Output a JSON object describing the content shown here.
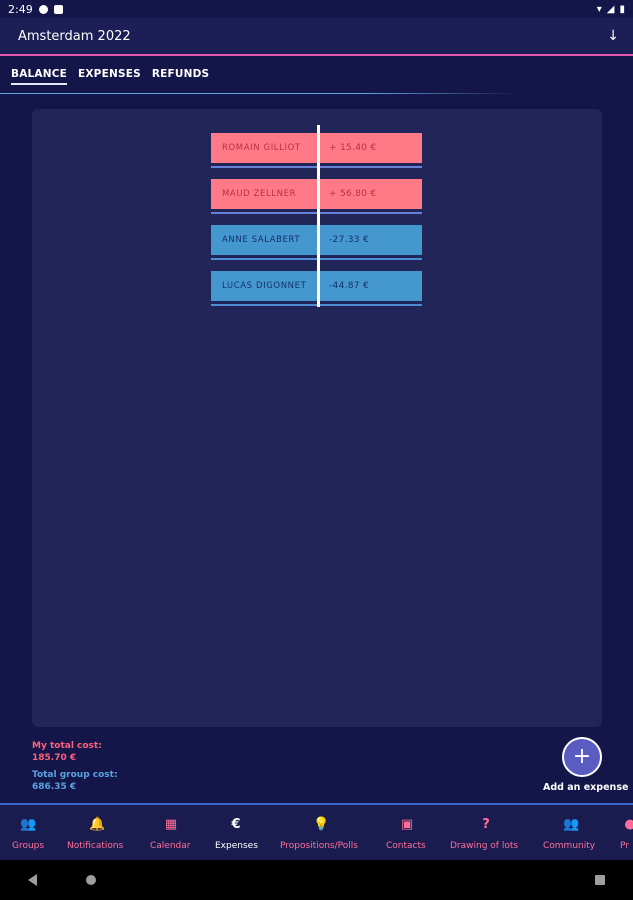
{
  "status_bar": {
    "time": "2:49",
    "right_icons": [
      "wifi-icon",
      "signal-icon",
      "battery-icon"
    ]
  },
  "app_bar": {
    "title": "Amsterdam 2022",
    "action_icon": "arrow-down-icon",
    "action_glyph": "↓"
  },
  "tabs": [
    {
      "label": "BALANCE",
      "active": true
    },
    {
      "label": "EXPENSES",
      "active": false
    },
    {
      "label": "REFUNDS",
      "active": false
    }
  ],
  "balances": [
    {
      "name": "ROMAIN GILLIOT",
      "amount": "+ 15.40 €",
      "sign": "positive"
    },
    {
      "name": "MAUD ZELLNER",
      "amount": "+ 56.80 €",
      "sign": "positive"
    },
    {
      "name": "ANNE SALABERT",
      "amount": "-27.33 €",
      "sign": "negative"
    },
    {
      "name": "LUCAS DIGONNET",
      "amount": "-44.87 €",
      "sign": "negative"
    }
  ],
  "costs": {
    "my_label": "My total cost:",
    "my_value": "185.70 €",
    "group_label": "Total group cost:",
    "group_value": "686.35 €"
  },
  "fab": {
    "glyph": "+",
    "label": "Add an expense"
  },
  "bottom_nav": [
    {
      "label": "Groups",
      "icon": "groups-icon",
      "glyph": "👥",
      "active": false
    },
    {
      "label": "Notifications",
      "icon": "bell-icon",
      "glyph": "🔔",
      "active": false
    },
    {
      "label": "Calendar",
      "icon": "calendar-icon",
      "glyph": "▦",
      "active": false
    },
    {
      "label": "Expenses",
      "icon": "euro-icon",
      "glyph": "€",
      "active": true
    },
    {
      "label": "Propositions/Polls",
      "icon": "lightbulb-icon",
      "glyph": "💡",
      "active": false
    },
    {
      "label": "Contacts",
      "icon": "contacts-icon",
      "glyph": "▣",
      "active": false
    },
    {
      "label": "Drawing of lots",
      "icon": "question-icon",
      "glyph": "?",
      "active": false
    },
    {
      "label": "Community",
      "icon": "community-icon",
      "glyph": "👥",
      "active": false
    },
    {
      "label": "Pr",
      "icon": "profile-icon",
      "glyph": "●",
      "active": false
    }
  ],
  "colors": {
    "background": "#14164a",
    "panel": "#222558",
    "positive": "#ff7a86",
    "negative": "#4597cf",
    "accent_pink": "#ff6f99",
    "accent_blue": "#5aa3e0"
  }
}
